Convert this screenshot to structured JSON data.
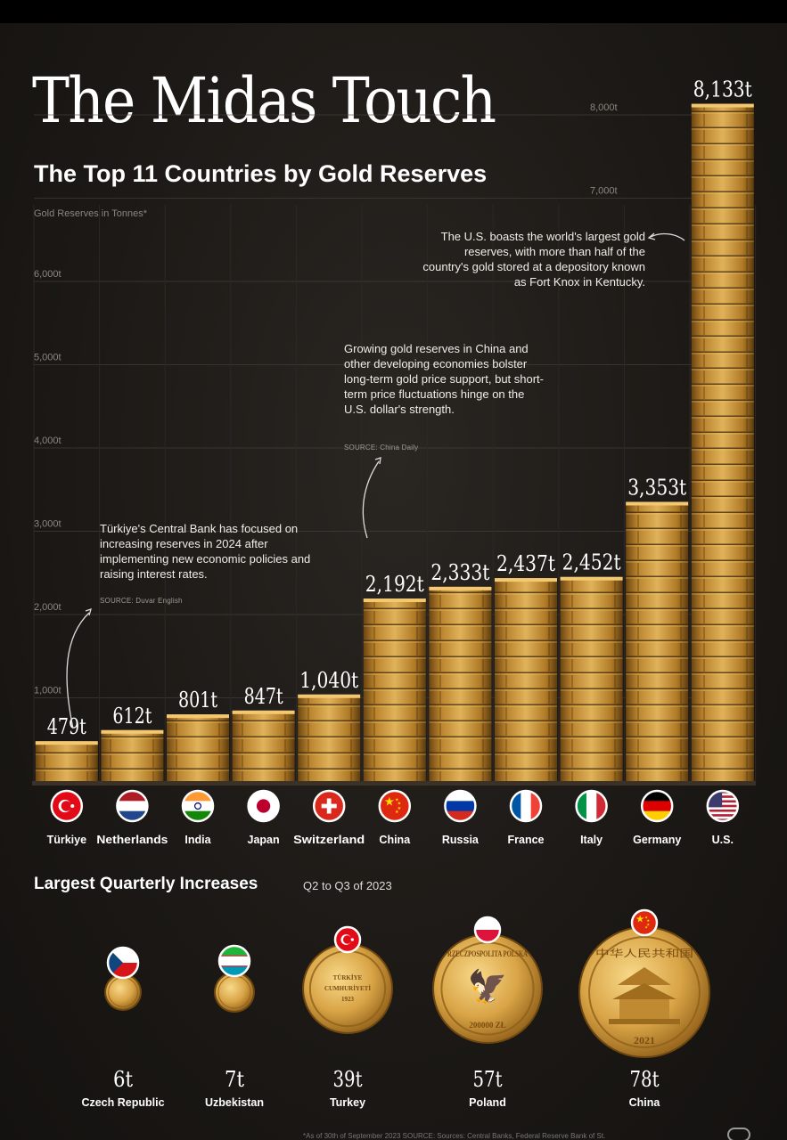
{
  "title": "The Midas Touch",
  "subtitle": "The Top 11 Countries by Gold Reserves",
  "unit_label": "Gold Reserves in Tonnes*",
  "chart_data": {
    "type": "bar",
    "title": "The Midas Touch",
    "subtitle": "The Top 11 Countries by Gold Reserves",
    "ylabel": "Gold Reserves in Tonnes*",
    "ylim": [
      0,
      8500
    ],
    "y_ticks": [
      {
        "value": 1000,
        "label": "1,000t"
      },
      {
        "value": 2000,
        "label": "2,000t"
      },
      {
        "value": 3000,
        "label": "3,000t"
      },
      {
        "value": 4000,
        "label": "4,000t"
      },
      {
        "value": 5000,
        "label": "5,000t"
      },
      {
        "value": 6000,
        "label": "6,000t"
      },
      {
        "value": 7000,
        "label": "7,000t"
      },
      {
        "value": 8000,
        "label": "8,000t"
      }
    ],
    "categories": [
      "Türkiye",
      "Netherlands",
      "India",
      "Japan",
      "Switzerland",
      "China",
      "Russia",
      "France",
      "Italy",
      "Germany",
      "U.S."
    ],
    "values": [
      479,
      612,
      801,
      847,
      1040,
      2192,
      2333,
      2437,
      2452,
      3353,
      8133
    ],
    "value_labels": [
      "479t",
      "612t",
      "801t",
      "847t",
      "1,040t",
      "2,192t",
      "2,333t",
      "2,437t",
      "2,452t",
      "3,353t",
      "8,133t"
    ],
    "flags": [
      "turkey",
      "netherlands",
      "india",
      "japan",
      "switzerland",
      "china",
      "russia",
      "france",
      "italy",
      "germany",
      "usa"
    ],
    "grid": true
  },
  "annotations": {
    "us": "The U.S. boasts the world's largest gold reserves, with more than half of the country's gold stored at a depository known as Fort Knox in Kentucky.",
    "china": "Growing gold reserves in China and other developing economies bolster long-term gold price support, but short-term price fluctuations hinge on the U.S. dollar's strength.",
    "china_source": "SOURCE: China Daily",
    "turkiye": "Türkiye's Central Bank has focused on increasing reserves in 2024 after implementing new economic policies and raising interest rates.",
    "turkiye_source": "SOURCE: Duvar English"
  },
  "increases": {
    "title": "Largest Quarterly Increases",
    "subtitle": "Q2 to Q3 of 2023",
    "items": [
      {
        "country": "Czech Republic",
        "value_label": "6t",
        "value": 6,
        "flag": "czech"
      },
      {
        "country": "Uzbekistan",
        "value_label": "7t",
        "value": 7,
        "flag": "uzbekistan"
      },
      {
        "country": "Turkey",
        "value_label": "39t",
        "value": 39,
        "flag": "turkey",
        "coin_text": [
          "TÜRKİYE",
          "CUMHURİYETİ",
          "1923"
        ]
      },
      {
        "country": "Poland",
        "value_label": "57t",
        "value": 57,
        "flag": "poland",
        "coin_text": [
          "RZECZPOSPOLITA POLSKA",
          "200000 ZŁ"
        ]
      },
      {
        "country": "China",
        "value_label": "78t",
        "value": 78,
        "flag": "china",
        "coin_text": [
          "中华人民共和国",
          "2021"
        ]
      }
    ]
  },
  "footnote": "*As of 30th of September 2023 SOURCE: Sources: Central Banks, Federal Reserve Bank of St.",
  "colors": {
    "gold_light": "#d9a64a",
    "gold_mid": "#a9741f",
    "gold_dark": "#5a3a0e",
    "background": "#1b1815"
  }
}
